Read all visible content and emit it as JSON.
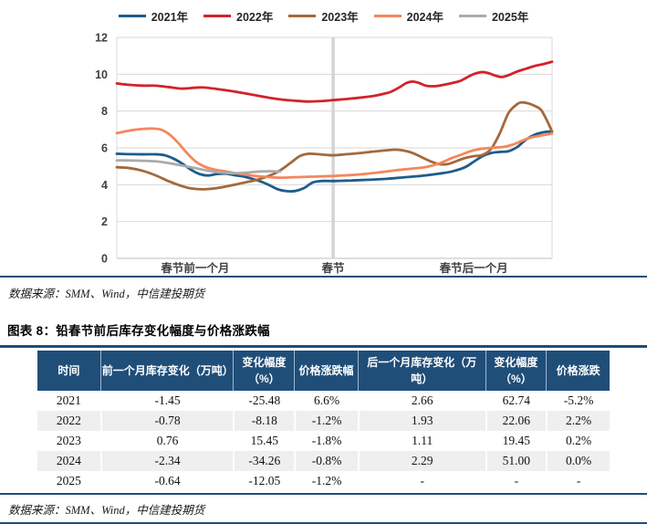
{
  "chart_data": {
    "type": "line",
    "title": "",
    "xlabel": "",
    "ylabel": "",
    "ylim": [
      0,
      12
    ],
    "y_ticks": [
      0,
      2,
      4,
      6,
      8,
      10,
      12
    ],
    "grid": "horizontal",
    "legend_position": "top",
    "x_axis_labels": [
      {
        "label": "春节前一个月",
        "t": 0.18
      },
      {
        "label": "春节",
        "t": 0.497
      },
      {
        "label": "春节后一个月",
        "t": 0.82
      }
    ],
    "event_line": {
      "name": "spring-festival",
      "t": 0.497,
      "color": "#D4D4D4"
    },
    "series": [
      {
        "name": "2021年",
        "color": "#1F5C8B",
        "points": [
          [
            0,
            5.68
          ],
          [
            0.03,
            5.66
          ],
          [
            0.06,
            5.65
          ],
          [
            0.09,
            5.65
          ],
          [
            0.11,
            5.6
          ],
          [
            0.13,
            5.42
          ],
          [
            0.15,
            5.15
          ],
          [
            0.17,
            4.82
          ],
          [
            0.19,
            4.58
          ],
          [
            0.21,
            4.5
          ],
          [
            0.23,
            4.58
          ],
          [
            0.25,
            4.6
          ],
          [
            0.27,
            4.52
          ],
          [
            0.29,
            4.45
          ],
          [
            0.31,
            4.33
          ],
          [
            0.33,
            4.18
          ],
          [
            0.35,
            3.98
          ],
          [
            0.37,
            3.75
          ],
          [
            0.39,
            3.65
          ],
          [
            0.41,
            3.66
          ],
          [
            0.43,
            3.82
          ],
          [
            0.45,
            4.12
          ],
          [
            0.47,
            4.2
          ],
          [
            0.5,
            4.2
          ],
          [
            0.54,
            4.23
          ],
          [
            0.58,
            4.27
          ],
          [
            0.62,
            4.32
          ],
          [
            0.66,
            4.4
          ],
          [
            0.7,
            4.48
          ],
          [
            0.74,
            4.6
          ],
          [
            0.77,
            4.72
          ],
          [
            0.8,
            4.95
          ],
          [
            0.82,
            5.25
          ],
          [
            0.84,
            5.55
          ],
          [
            0.86,
            5.72
          ],
          [
            0.88,
            5.78
          ],
          [
            0.9,
            5.82
          ],
          [
            0.92,
            6.05
          ],
          [
            0.94,
            6.45
          ],
          [
            0.96,
            6.72
          ],
          [
            0.98,
            6.85
          ],
          [
            1,
            6.9
          ]
        ]
      },
      {
        "name": "2022年",
        "color": "#D2232A",
        "points": [
          [
            0,
            9.5
          ],
          [
            0.03,
            9.42
          ],
          [
            0.06,
            9.38
          ],
          [
            0.09,
            9.38
          ],
          [
            0.12,
            9.3
          ],
          [
            0.15,
            9.22
          ],
          [
            0.18,
            9.27
          ],
          [
            0.2,
            9.28
          ],
          [
            0.23,
            9.2
          ],
          [
            0.26,
            9.1
          ],
          [
            0.29,
            8.98
          ],
          [
            0.32,
            8.85
          ],
          [
            0.35,
            8.72
          ],
          [
            0.38,
            8.62
          ],
          [
            0.41,
            8.56
          ],
          [
            0.44,
            8.52
          ],
          [
            0.47,
            8.54
          ],
          [
            0.5,
            8.6
          ],
          [
            0.53,
            8.66
          ],
          [
            0.56,
            8.73
          ],
          [
            0.59,
            8.82
          ],
          [
            0.61,
            8.92
          ],
          [
            0.63,
            9.05
          ],
          [
            0.65,
            9.3
          ],
          [
            0.665,
            9.52
          ],
          [
            0.68,
            9.6
          ],
          [
            0.695,
            9.52
          ],
          [
            0.71,
            9.38
          ],
          [
            0.73,
            9.35
          ],
          [
            0.75,
            9.42
          ],
          [
            0.77,
            9.52
          ],
          [
            0.79,
            9.65
          ],
          [
            0.81,
            9.9
          ],
          [
            0.825,
            10.05
          ],
          [
            0.84,
            10.12
          ],
          [
            0.855,
            10.05
          ],
          [
            0.87,
            9.92
          ],
          [
            0.885,
            9.85
          ],
          [
            0.9,
            9.95
          ],
          [
            0.92,
            10.15
          ],
          [
            0.94,
            10.3
          ],
          [
            0.96,
            10.45
          ],
          [
            0.98,
            10.55
          ],
          [
            1,
            10.68
          ]
        ]
      },
      {
        "name": "2023年",
        "color": "#A3693C",
        "points": [
          [
            0,
            4.95
          ],
          [
            0.03,
            4.9
          ],
          [
            0.06,
            4.75
          ],
          [
            0.09,
            4.5
          ],
          [
            0.12,
            4.18
          ],
          [
            0.15,
            3.92
          ],
          [
            0.17,
            3.8
          ],
          [
            0.2,
            3.75
          ],
          [
            0.23,
            3.82
          ],
          [
            0.26,
            3.95
          ],
          [
            0.29,
            4.1
          ],
          [
            0.32,
            4.25
          ],
          [
            0.34,
            4.4
          ],
          [
            0.36,
            4.58
          ],
          [
            0.38,
            4.85
          ],
          [
            0.4,
            5.2
          ],
          [
            0.42,
            5.55
          ],
          [
            0.44,
            5.68
          ],
          [
            0.46,
            5.66
          ],
          [
            0.48,
            5.62
          ],
          [
            0.5,
            5.6
          ],
          [
            0.53,
            5.66
          ],
          [
            0.56,
            5.72
          ],
          [
            0.59,
            5.8
          ],
          [
            0.62,
            5.87
          ],
          [
            0.64,
            5.9
          ],
          [
            0.66,
            5.85
          ],
          [
            0.68,
            5.72
          ],
          [
            0.7,
            5.5
          ],
          [
            0.72,
            5.28
          ],
          [
            0.74,
            5.12
          ],
          [
            0.76,
            5.12
          ],
          [
            0.78,
            5.28
          ],
          [
            0.8,
            5.45
          ],
          [
            0.82,
            5.55
          ],
          [
            0.84,
            5.62
          ],
          [
            0.86,
            5.95
          ],
          [
            0.88,
            6.8
          ],
          [
            0.9,
            7.9
          ],
          [
            0.92,
            8.38
          ],
          [
            0.93,
            8.47
          ],
          [
            0.945,
            8.42
          ],
          [
            0.96,
            8.28
          ],
          [
            0.975,
            8.05
          ],
          [
            0.99,
            7.4
          ],
          [
            1,
            6.88
          ]
        ]
      },
      {
        "name": "2024年",
        "color": "#F4875D",
        "points": [
          [
            0,
            6.8
          ],
          [
            0.02,
            6.9
          ],
          [
            0.04,
            6.98
          ],
          [
            0.06,
            7.03
          ],
          [
            0.08,
            7.05
          ],
          [
            0.1,
            7.0
          ],
          [
            0.12,
            6.75
          ],
          [
            0.14,
            6.3
          ],
          [
            0.16,
            5.75
          ],
          [
            0.18,
            5.28
          ],
          [
            0.2,
            5.0
          ],
          [
            0.22,
            4.85
          ],
          [
            0.25,
            4.72
          ],
          [
            0.28,
            4.6
          ],
          [
            0.31,
            4.5
          ],
          [
            0.34,
            4.43
          ],
          [
            0.37,
            4.38
          ],
          [
            0.4,
            4.4
          ],
          [
            0.44,
            4.43
          ],
          [
            0.48,
            4.46
          ],
          [
            0.52,
            4.5
          ],
          [
            0.56,
            4.56
          ],
          [
            0.6,
            4.66
          ],
          [
            0.64,
            4.78
          ],
          [
            0.68,
            4.88
          ],
          [
            0.71,
            4.96
          ],
          [
            0.74,
            5.15
          ],
          [
            0.77,
            5.45
          ],
          [
            0.79,
            5.62
          ],
          [
            0.81,
            5.8
          ],
          [
            0.83,
            5.92
          ],
          [
            0.85,
            5.98
          ],
          [
            0.87,
            6.02
          ],
          [
            0.89,
            6.06
          ],
          [
            0.91,
            6.18
          ],
          [
            0.93,
            6.38
          ],
          [
            0.95,
            6.55
          ],
          [
            0.97,
            6.65
          ],
          [
            1,
            6.78
          ]
        ]
      },
      {
        "name": "2025年",
        "color": "#ABABAB",
        "points": [
          [
            0,
            5.32
          ],
          [
            0.03,
            5.32
          ],
          [
            0.06,
            5.3
          ],
          [
            0.09,
            5.27
          ],
          [
            0.12,
            5.17
          ],
          [
            0.15,
            5.04
          ],
          [
            0.18,
            4.9
          ],
          [
            0.21,
            4.76
          ],
          [
            0.24,
            4.66
          ],
          [
            0.27,
            4.62
          ],
          [
            0.3,
            4.66
          ],
          [
            0.33,
            4.72
          ],
          [
            0.36,
            4.73
          ],
          [
            0.375,
            4.71
          ]
        ]
      }
    ]
  },
  "source_top": "数据来源：SMM、Wind，中信建投期货",
  "figure_title": "图表 8：铅春节前后库存变化幅度与价格涨跌幅",
  "table": {
    "headers": [
      "时间",
      "前一个月库存变化（万吨）",
      "变化幅度（%）",
      "价格涨跌幅",
      "后一个月库存变化（万吨）",
      "变化幅度（%）",
      "价格涨跌"
    ],
    "col_widths": [
      "11%",
      "23.5%",
      "10.5%",
      "11%",
      "22.5%",
      "10.5%",
      "11%"
    ],
    "rows": [
      [
        "2021",
        "-1.45",
        "-25.48",
        "6.6%",
        "2.66",
        "62.74",
        "-5.2%"
      ],
      [
        "2022",
        "-0.78",
        "-8.18",
        "-1.2%",
        "1.93",
        "22.06",
        "2.2%"
      ],
      [
        "2023",
        "0.76",
        "15.45",
        "-1.8%",
        "1.11",
        "19.45",
        "0.2%"
      ],
      [
        "2024",
        "-2.34",
        "-34.26",
        "-0.8%",
        "2.29",
        "51.00",
        "0.0%"
      ],
      [
        "2025",
        "-0.64",
        "-12.05",
        "-1.2%",
        "-",
        "-",
        "-"
      ]
    ]
  },
  "source_bottom": "数据来源：SMM、Wind，中信建投期货",
  "colors": {
    "rule": "#1F4E79",
    "table_header_bg": "#1F4E79",
    "row_stripe": "#EFEFEF",
    "gridline": "#D9D9D9",
    "axis_text": "#404040"
  }
}
